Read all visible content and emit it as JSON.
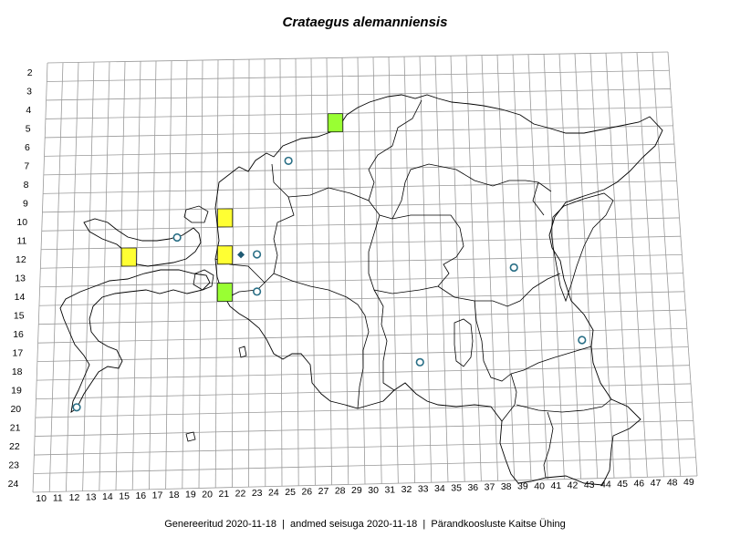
{
  "title": "Crataegus alemanniensis",
  "footer": {
    "generated": "Genereeritud 2020-11-18",
    "data_state": "andmed seisuga 2020-11-18",
    "organization": "Pärandkoosluste Kaitse Ühing",
    "separator": "|"
  },
  "colors": {
    "grid": "#9a9a9a",
    "border": "#000000",
    "yellow_square": "#ffff33",
    "green_square": "#99ff33",
    "circle_stroke": "#2a6f86",
    "diamond": "#1f5a73"
  },
  "chart_data": {
    "type": "grid-distribution-map",
    "grid_columns": [
      10,
      11,
      12,
      13,
      14,
      15,
      16,
      17,
      18,
      19,
      20,
      21,
      22,
      23,
      24,
      25,
      26,
      27,
      28,
      29,
      30,
      31,
      32,
      33,
      34,
      35,
      36,
      37,
      38,
      39,
      40,
      41,
      42,
      43,
      44,
      45,
      46,
      47,
      48,
      49
    ],
    "grid_rows": [
      2,
      3,
      4,
      5,
      6,
      7,
      8,
      9,
      10,
      11,
      12,
      13,
      14,
      15,
      16,
      17,
      18,
      19,
      20,
      21,
      22,
      23,
      24
    ],
    "markers": [
      {
        "type": "green-square",
        "col": 28,
        "row": 5
      },
      {
        "type": "yellow-square",
        "col": 21,
        "row": 10
      },
      {
        "type": "yellow-square",
        "col": 15,
        "row": 12
      },
      {
        "type": "yellow-square",
        "col": 21,
        "row": 12
      },
      {
        "type": "green-square",
        "col": 21,
        "row": 14
      },
      {
        "type": "diamond",
        "col": 22,
        "row": 12
      },
      {
        "type": "open-circle",
        "col": 25,
        "row": 7
      },
      {
        "type": "open-circle",
        "col": 18,
        "row": 11
      },
      {
        "type": "open-circle",
        "col": 23,
        "row": 12
      },
      {
        "type": "open-circle",
        "col": 23,
        "row": 14
      },
      {
        "type": "open-circle",
        "col": 39,
        "row": 13
      },
      {
        "type": "open-circle",
        "col": 43,
        "row": 17
      },
      {
        "type": "open-circle",
        "col": 33,
        "row": 18
      },
      {
        "type": "open-circle",
        "col": 12,
        "row": 20
      }
    ]
  }
}
